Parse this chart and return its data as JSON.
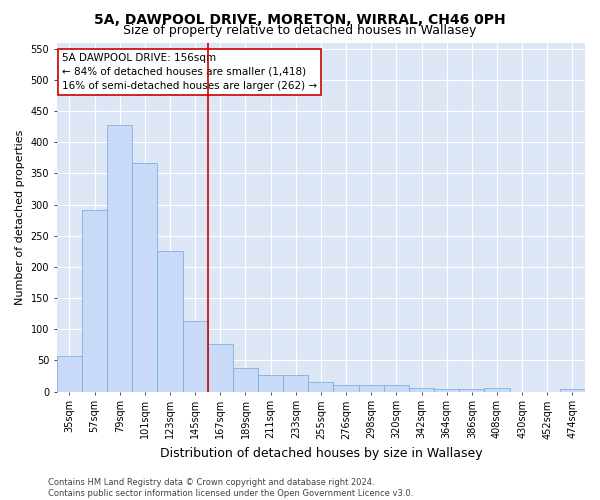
{
  "title": "5A, DAWPOOL DRIVE, MORETON, WIRRAL, CH46 0PH",
  "subtitle": "Size of property relative to detached houses in Wallasey",
  "xlabel": "Distribution of detached houses by size in Wallasey",
  "ylabel": "Number of detached properties",
  "categories": [
    "35sqm",
    "57sqm",
    "79sqm",
    "101sqm",
    "123sqm",
    "145sqm",
    "167sqm",
    "189sqm",
    "211sqm",
    "233sqm",
    "255sqm",
    "276sqm",
    "298sqm",
    "320sqm",
    "342sqm",
    "364sqm",
    "386sqm",
    "408sqm",
    "430sqm",
    "452sqm",
    "474sqm"
  ],
  "values": [
    57,
    292,
    428,
    367,
    225,
    113,
    76,
    38,
    27,
    27,
    15,
    10,
    10,
    10,
    5,
    4,
    4,
    6,
    0,
    0,
    4
  ],
  "bar_color": "#c9daf8",
  "bar_edge_color": "#6fa8dc",
  "vline_x_index": 5.5,
  "vline_color": "#cc0000",
  "annotation_text": "5A DAWPOOL DRIVE: 156sqm\n← 84% of detached houses are smaller (1,418)\n16% of semi-detached houses are larger (262) →",
  "annotation_box_facecolor": "#ffffff",
  "annotation_box_edgecolor": "#cc0000",
  "ylim": [
    0,
    560
  ],
  "yticks": [
    0,
    50,
    100,
    150,
    200,
    250,
    300,
    350,
    400,
    450,
    500,
    550
  ],
  "fig_facecolor": "#ffffff",
  "axes_facecolor": "#dce6f5",
  "grid_color": "#ffffff",
  "title_fontsize": 10,
  "subtitle_fontsize": 9,
  "xlabel_fontsize": 9,
  "ylabel_fontsize": 8,
  "tick_fontsize": 7,
  "annotation_fontsize": 7.5,
  "footer_fontsize": 6,
  "footer": "Contains HM Land Registry data © Crown copyright and database right 2024.\nContains public sector information licensed under the Open Government Licence v3.0."
}
